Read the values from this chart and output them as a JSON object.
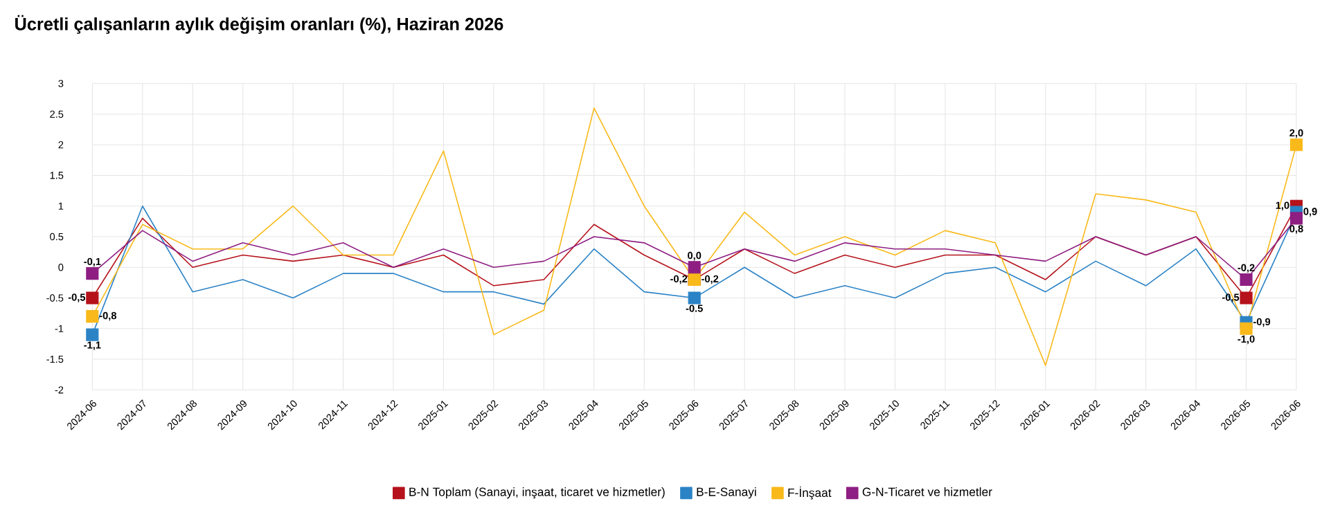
{
  "chart_data": {
    "type": "line",
    "title": "Ücretli çalışanların aylık değişim oranları (%), Haziran 2026",
    "categories": [
      "2024-06",
      "2024-07",
      "2024-08",
      "2024-09",
      "2024-10",
      "2024-11",
      "2024-12",
      "2025-01",
      "2025-02",
      "2025-03",
      "2025-04",
      "2025-05",
      "2025-06",
      "2025-07",
      "2025-08",
      "2025-09",
      "2025-10",
      "2025-11",
      "2025-12",
      "2026-01",
      "2026-02",
      "2026-03",
      "2026-04",
      "2026-05",
      "2026-06"
    ],
    "series": [
      {
        "name": "B-N Toplam (Sanayi, inşaat, ticaret ve hizmetler)",
        "color": "#b5121b",
        "values": [
          -0.5,
          0.8,
          0.0,
          0.2,
          0.1,
          0.2,
          0.0,
          0.2,
          -0.3,
          -0.2,
          0.7,
          0.2,
          -0.2,
          0.3,
          -0.1,
          0.2,
          0.0,
          0.2,
          0.2,
          -0.2,
          0.5,
          0.2,
          0.5,
          -0.5,
          1.0
        ],
        "value_labels": [
          "-0,5",
          null,
          null,
          null,
          null,
          null,
          null,
          null,
          null,
          null,
          null,
          null,
          "-0,2",
          null,
          null,
          null,
          null,
          null,
          null,
          null,
          null,
          null,
          null,
          "-0,5",
          "1,0"
        ]
      },
      {
        "name": "B-E-Sanayi",
        "color": "#2b83c6",
        "values": [
          -1.1,
          1.0,
          -0.4,
          -0.2,
          -0.5,
          -0.1,
          -0.1,
          -0.4,
          -0.4,
          -0.6,
          0.3,
          -0.4,
          -0.5,
          0.0,
          -0.5,
          -0.3,
          -0.5,
          -0.1,
          0.0,
          -0.4,
          0.1,
          -0.3,
          0.3,
          -0.9,
          0.9
        ],
        "value_labels": [
          "-1,1",
          null,
          null,
          null,
          null,
          null,
          null,
          null,
          null,
          null,
          null,
          null,
          "-0.5",
          null,
          null,
          null,
          null,
          null,
          null,
          null,
          null,
          null,
          null,
          "-0,9",
          "0,9"
        ]
      },
      {
        "name": "F-İnşaat",
        "color": "#f9b91a",
        "values": [
          -0.8,
          0.7,
          0.3,
          0.3,
          1.0,
          0.2,
          0.2,
          1.9,
          -1.1,
          -0.7,
          2.6,
          1.0,
          -0.2,
          0.9,
          0.2,
          0.5,
          0.2,
          0.6,
          0.4,
          -1.6,
          1.2,
          1.1,
          0.9,
          -1.0,
          2.0
        ],
        "value_labels": [
          "-0,8",
          null,
          null,
          null,
          null,
          null,
          null,
          null,
          null,
          null,
          null,
          null,
          "-0,2",
          null,
          null,
          null,
          null,
          null,
          null,
          null,
          null,
          null,
          null,
          "-1,0",
          "2,0"
        ]
      },
      {
        "name": "G-N-Ticaret ve hizmetler",
        "color": "#8e1e82",
        "values": [
          -0.1,
          0.6,
          0.1,
          0.4,
          0.2,
          0.4,
          0.0,
          0.3,
          0.0,
          0.1,
          0.5,
          0.4,
          0.0,
          0.3,
          0.1,
          0.4,
          0.3,
          0.3,
          0.2,
          0.1,
          0.5,
          0.2,
          0.5,
          -0.2,
          0.8
        ],
        "value_labels": [
          "-0,1",
          null,
          null,
          null,
          null,
          null,
          null,
          null,
          null,
          null,
          null,
          null,
          "0,0",
          null,
          null,
          null,
          null,
          null,
          null,
          null,
          null,
          null,
          null,
          "-0,2",
          "0,8"
        ]
      }
    ],
    "ylim": [
      -2,
      3
    ],
    "yticks": [
      -2,
      -1.5,
      -1,
      {
        "value": -0.5,
        "label": "-0.5"
      },
      0,
      0.5,
      1,
      1.5,
      2,
      2.5,
      3
    ],
    "grid": true,
    "legend": "bottom",
    "line_style": "solid"
  }
}
